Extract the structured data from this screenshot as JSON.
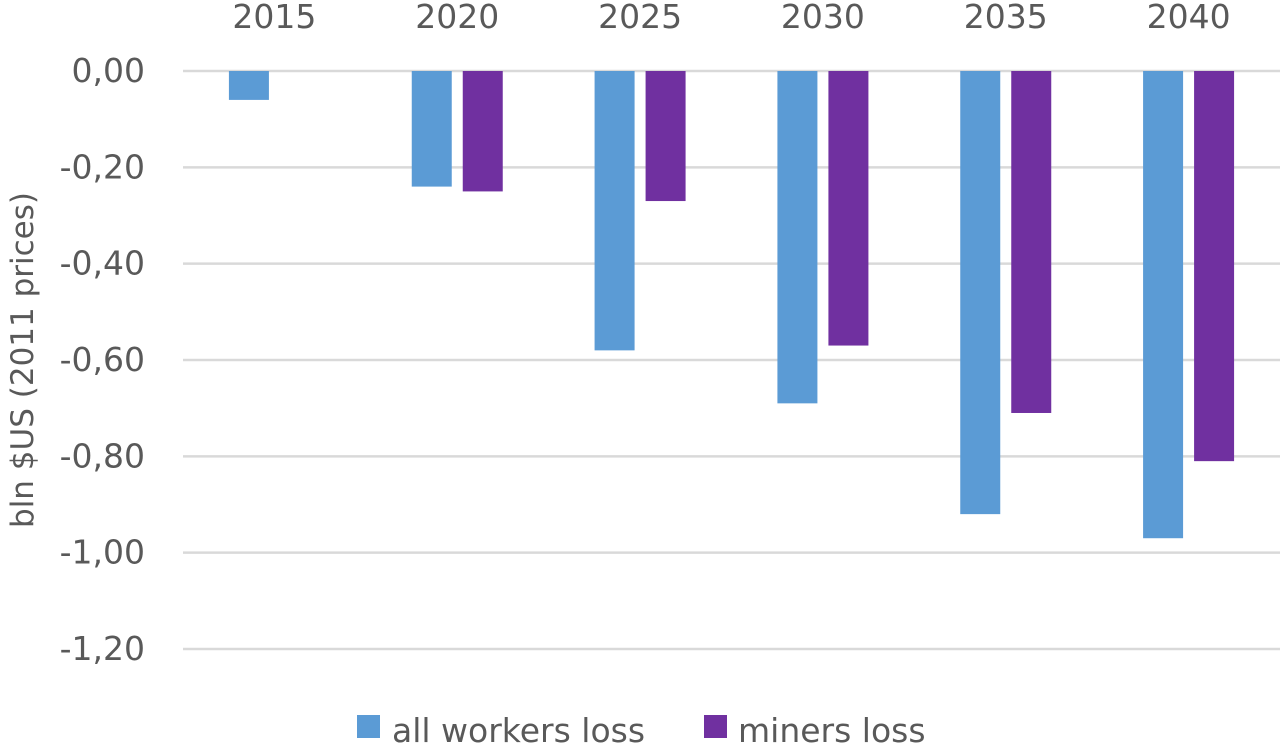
{
  "chart_data": {
    "type": "bar",
    "categories": [
      "2015",
      "2020",
      "2025",
      "2030",
      "2035",
      "2040"
    ],
    "series": [
      {
        "name": "all workers loss",
        "color": "#5b9bd5",
        "values": [
          -0.06,
          -0.24,
          -0.58,
          -0.69,
          -0.92,
          -0.97
        ]
      },
      {
        "name": "miners loss",
        "color": "#7030a0",
        "values": [
          null,
          -0.25,
          -0.27,
          -0.57,
          -0.71,
          -0.81
        ]
      }
    ],
    "ylabel": "bln $US (2011 prices)",
    "ylim": [
      -1.2,
      0
    ],
    "yticks": [
      "0,00",
      "-0,20",
      "-0,40",
      "-0,60",
      "-0,80",
      "-1,00",
      "-1,20"
    ],
    "ytick_values": [
      0,
      -0.2,
      -0.4,
      -0.6,
      -0.8,
      -1.0,
      -1.2
    ],
    "xaxis_position": "top",
    "grid": true,
    "legend_position": "bottom"
  }
}
